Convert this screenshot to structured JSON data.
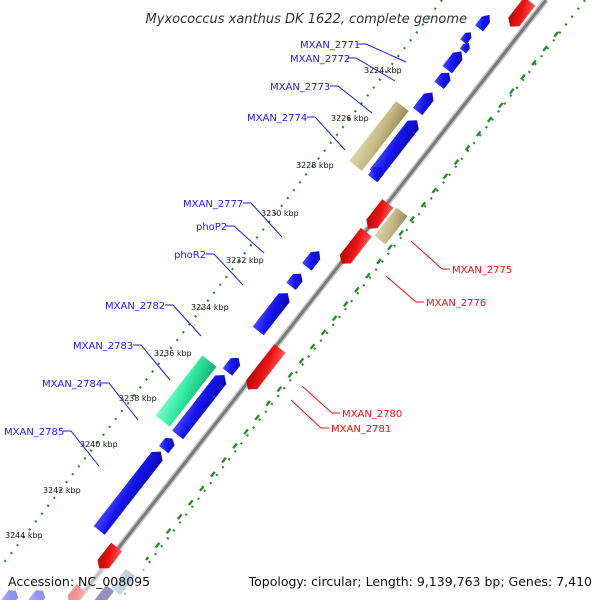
{
  "title": "Myxococcus xanthus DK 1622, complete genome",
  "footer": {
    "accession": "Accession: NC_008095",
    "summary": "Topology: circular; Length: 9,139,763 bp; Genes: 7,410"
  },
  "colors": {
    "plus_strand": "#1010e8",
    "minus_strand": "#e81010",
    "khaki": "#c8bf8a",
    "mint": "#33eeaa",
    "axis": "#7a7a7a",
    "tick": "#2d8a2d",
    "plus_label": "#1a1aff",
    "minus_label": "#ee1111"
  },
  "kbp_ticks": [
    "3224 kbp",
    "3226 kbp",
    "3228 kbp",
    "3230 kbp",
    "3232 kbp",
    "3234 kbp",
    "3236 kbp",
    "3238 kbp",
    "3240 kbp",
    "3242 kbp",
    "3244 kbp"
  ],
  "plus_labels": [
    "MXAN_2771",
    "MXAN_2772",
    "MXAN_2773",
    "MXAN_2774",
    "MXAN_2777",
    "phoP2",
    "phoR2",
    "MXAN_2782",
    "MXAN_2783",
    "MXAN_2784",
    "MXAN_2785"
  ],
  "minus_labels": [
    "MXAN_2775",
    "MXAN_2776",
    "MXAN_2780",
    "MXAN_2781"
  ]
}
